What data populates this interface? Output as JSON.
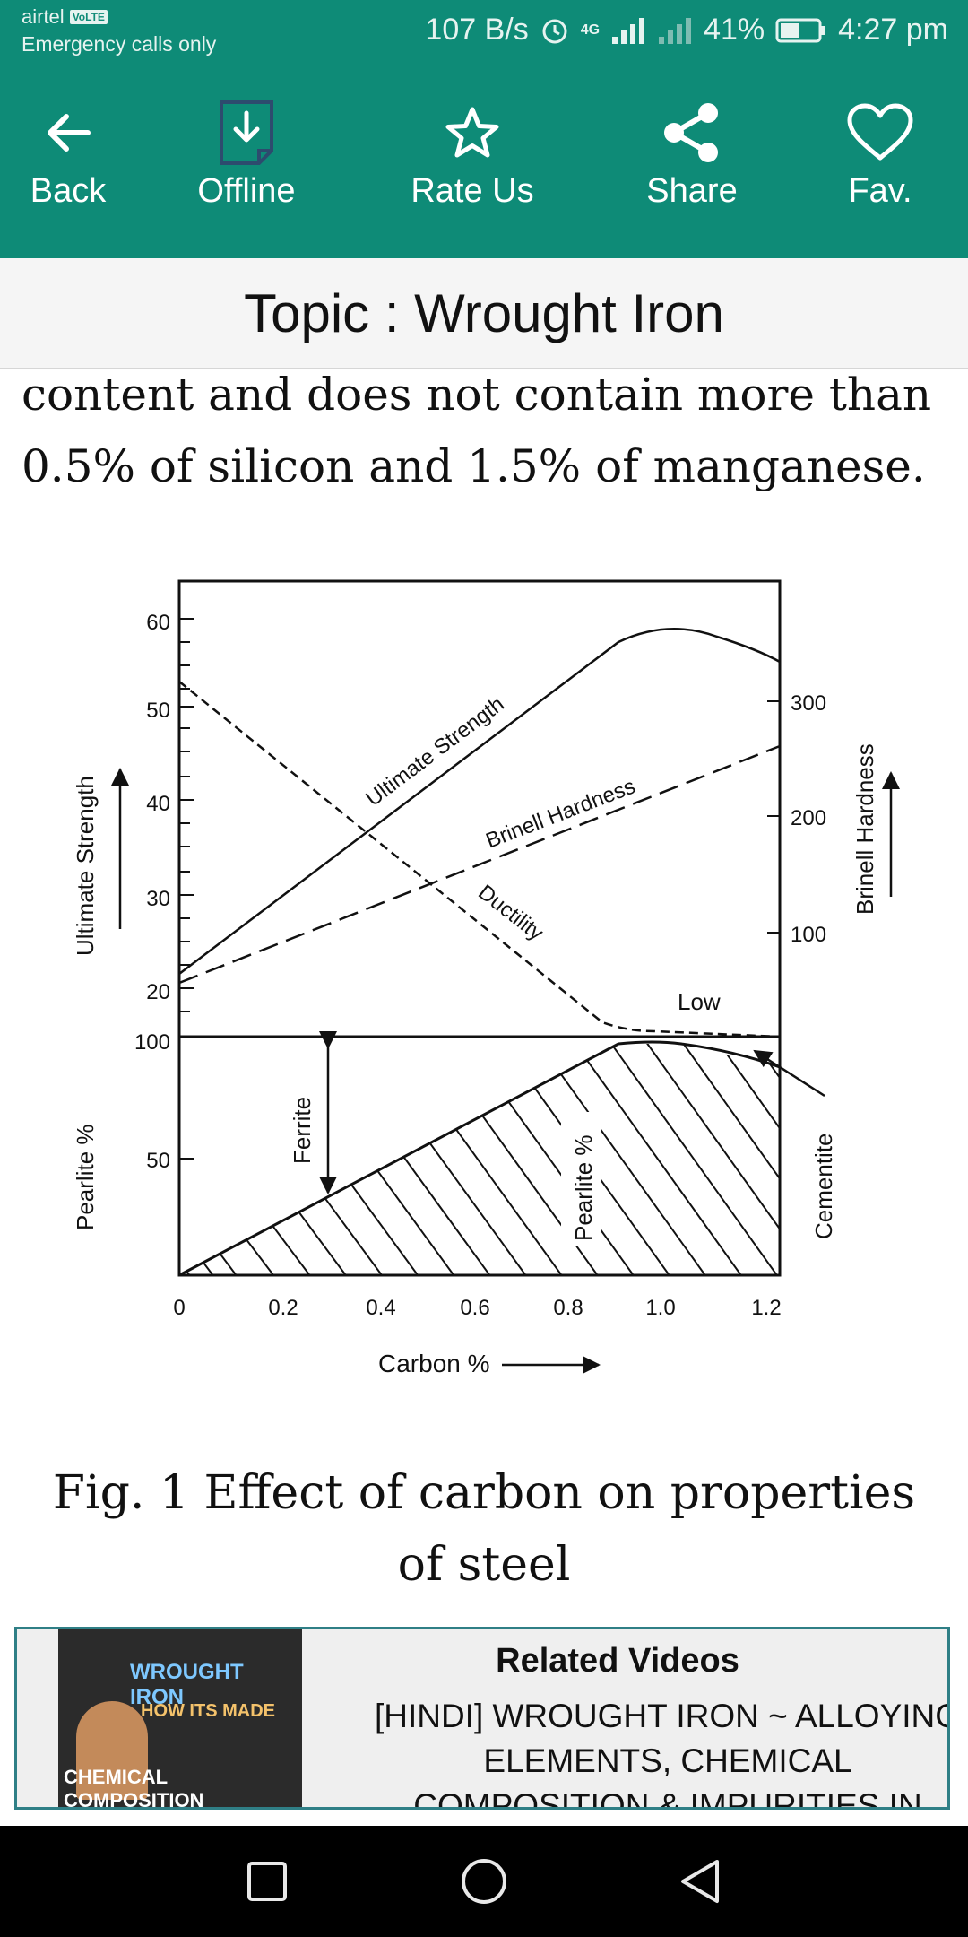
{
  "status_bar": {
    "carrier": "airtel",
    "volte": "VoLTE",
    "emergency": "Emergency calls only",
    "speed": "107 B/s",
    "network": "4G",
    "battery": "41%",
    "time": "4:27 pm"
  },
  "toolbar": {
    "back_label": "Back",
    "offline_label": "Offline",
    "rate_label": "Rate Us",
    "share_label": "Share",
    "fav_label": "Fav."
  },
  "topic": {
    "title": "Topic : Wrought Iron"
  },
  "article": {
    "text": "content and does not contain more than 0.5% of silicon and 1.5% of manganese."
  },
  "figure": {
    "caption": "Fig. 1 Effect of carbon on properties of steel",
    "labels": {
      "ultimate_strength": "Ultimate Strength",
      "brinell_hardness": "Brinell Hardness",
      "ductility": "Ductility",
      "low": "Low",
      "pearlite_pct": "Pearlite %",
      "ferrite": "Ferrite",
      "cementite": "Cementite",
      "carbon_pct": "Carbon %"
    },
    "ticks": {
      "y_left": [
        "60",
        "50",
        "40",
        "30",
        "20"
      ],
      "y_right": [
        "300",
        "200",
        "100"
      ],
      "pearlite": [
        "100",
        "50"
      ],
      "x": [
        "0",
        "0.2",
        "0.4",
        "0.6",
        "0.8",
        "1.0",
        "1.2"
      ]
    }
  },
  "related": {
    "heading": "Related Videos",
    "description": "[HINDI] WROUGHT IRON ~ ALLOYING ELEMENTS, CHEMICAL COMPOSITION & IMPURITIES IN",
    "thumb_line1": "WROUGHT IRON",
    "thumb_line2": "HOW ITS MADE",
    "thumb_line3": "CHEMICAL COMPOSITION"
  },
  "colors": {
    "primary": "#0e8b77",
    "related_border": "#2f7f86"
  },
  "icons": {
    "back": "arrow-left-icon",
    "offline": "download-file-icon",
    "rate": "star-icon",
    "share": "share-icon",
    "fav": "heart-icon",
    "nav_recents": "square-icon",
    "nav_home": "circle-icon",
    "nav_back": "triangle-icon"
  }
}
